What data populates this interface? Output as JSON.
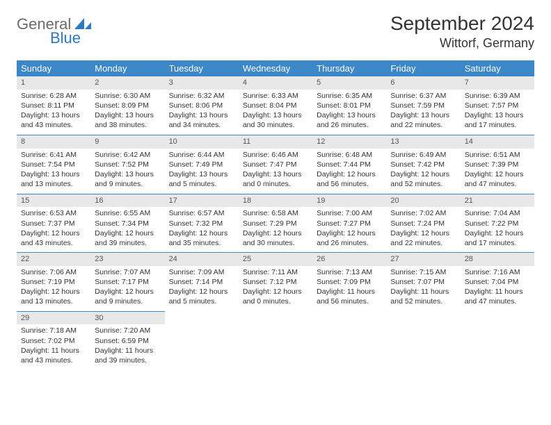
{
  "logo": {
    "main": "General",
    "sub": "Blue"
  },
  "title": "September 2024",
  "location": "Wittorf, Germany",
  "colors": {
    "header_bg": "#3b87c8",
    "header_fg": "#ffffff",
    "daynum_bg": "#e8e8e8",
    "row_border": "#3b87c8",
    "text": "#333333",
    "logo_gray": "#6b6b6b",
    "logo_blue": "#2e79c1"
  },
  "weekdays": [
    "Sunday",
    "Monday",
    "Tuesday",
    "Wednesday",
    "Thursday",
    "Friday",
    "Saturday"
  ],
  "days": [
    {
      "n": 1,
      "sr": "6:28 AM",
      "ss": "8:11 PM",
      "dl": "13 hours and 43 minutes."
    },
    {
      "n": 2,
      "sr": "6:30 AM",
      "ss": "8:09 PM",
      "dl": "13 hours and 38 minutes."
    },
    {
      "n": 3,
      "sr": "6:32 AM",
      "ss": "8:06 PM",
      "dl": "13 hours and 34 minutes."
    },
    {
      "n": 4,
      "sr": "6:33 AM",
      "ss": "8:04 PM",
      "dl": "13 hours and 30 minutes."
    },
    {
      "n": 5,
      "sr": "6:35 AM",
      "ss": "8:01 PM",
      "dl": "13 hours and 26 minutes."
    },
    {
      "n": 6,
      "sr": "6:37 AM",
      "ss": "7:59 PM",
      "dl": "13 hours and 22 minutes."
    },
    {
      "n": 7,
      "sr": "6:39 AM",
      "ss": "7:57 PM",
      "dl": "13 hours and 17 minutes."
    },
    {
      "n": 8,
      "sr": "6:41 AM",
      "ss": "7:54 PM",
      "dl": "13 hours and 13 minutes."
    },
    {
      "n": 9,
      "sr": "6:42 AM",
      "ss": "7:52 PM",
      "dl": "13 hours and 9 minutes."
    },
    {
      "n": 10,
      "sr": "6:44 AM",
      "ss": "7:49 PM",
      "dl": "13 hours and 5 minutes."
    },
    {
      "n": 11,
      "sr": "6:46 AM",
      "ss": "7:47 PM",
      "dl": "13 hours and 0 minutes."
    },
    {
      "n": 12,
      "sr": "6:48 AM",
      "ss": "7:44 PM",
      "dl": "12 hours and 56 minutes."
    },
    {
      "n": 13,
      "sr": "6:49 AM",
      "ss": "7:42 PM",
      "dl": "12 hours and 52 minutes."
    },
    {
      "n": 14,
      "sr": "6:51 AM",
      "ss": "7:39 PM",
      "dl": "12 hours and 47 minutes."
    },
    {
      "n": 15,
      "sr": "6:53 AM",
      "ss": "7:37 PM",
      "dl": "12 hours and 43 minutes."
    },
    {
      "n": 16,
      "sr": "6:55 AM",
      "ss": "7:34 PM",
      "dl": "12 hours and 39 minutes."
    },
    {
      "n": 17,
      "sr": "6:57 AM",
      "ss": "7:32 PM",
      "dl": "12 hours and 35 minutes."
    },
    {
      "n": 18,
      "sr": "6:58 AM",
      "ss": "7:29 PM",
      "dl": "12 hours and 30 minutes."
    },
    {
      "n": 19,
      "sr": "7:00 AM",
      "ss": "7:27 PM",
      "dl": "12 hours and 26 minutes."
    },
    {
      "n": 20,
      "sr": "7:02 AM",
      "ss": "7:24 PM",
      "dl": "12 hours and 22 minutes."
    },
    {
      "n": 21,
      "sr": "7:04 AM",
      "ss": "7:22 PM",
      "dl": "12 hours and 17 minutes."
    },
    {
      "n": 22,
      "sr": "7:06 AM",
      "ss": "7:19 PM",
      "dl": "12 hours and 13 minutes."
    },
    {
      "n": 23,
      "sr": "7:07 AM",
      "ss": "7:17 PM",
      "dl": "12 hours and 9 minutes."
    },
    {
      "n": 24,
      "sr": "7:09 AM",
      "ss": "7:14 PM",
      "dl": "12 hours and 5 minutes."
    },
    {
      "n": 25,
      "sr": "7:11 AM",
      "ss": "7:12 PM",
      "dl": "12 hours and 0 minutes."
    },
    {
      "n": 26,
      "sr": "7:13 AM",
      "ss": "7:09 PM",
      "dl": "11 hours and 56 minutes."
    },
    {
      "n": 27,
      "sr": "7:15 AM",
      "ss": "7:07 PM",
      "dl": "11 hours and 52 minutes."
    },
    {
      "n": 28,
      "sr": "7:16 AM",
      "ss": "7:04 PM",
      "dl": "11 hours and 47 minutes."
    },
    {
      "n": 29,
      "sr": "7:18 AM",
      "ss": "7:02 PM",
      "dl": "11 hours and 43 minutes."
    },
    {
      "n": 30,
      "sr": "7:20 AM",
      "ss": "6:59 PM",
      "dl": "11 hours and 39 minutes."
    }
  ],
  "labels": {
    "sunrise": "Sunrise:",
    "sunset": "Sunset:",
    "daylight": "Daylight:"
  },
  "layout": {
    "start_weekday": 0,
    "columns": 7,
    "rows": 5
  }
}
